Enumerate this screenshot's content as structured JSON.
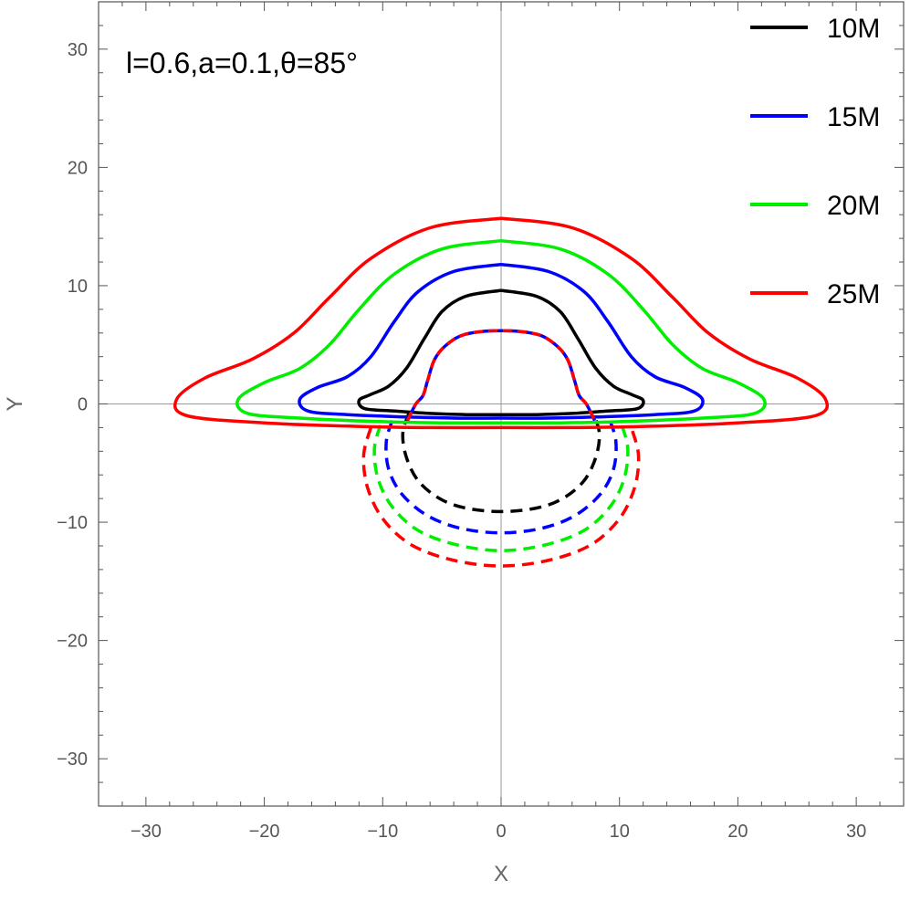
{
  "chart_data": {
    "type": "line",
    "title": "",
    "xlabel": "X",
    "ylabel": "Y",
    "xlim": [
      -34,
      34
    ],
    "ylim": [
      -34,
      34
    ],
    "xticks": [
      -30,
      -20,
      -10,
      0,
      10,
      20,
      30
    ],
    "yticks": [
      -30,
      -20,
      -10,
      0,
      10,
      20,
      30
    ],
    "xtick_labels": [
      "−30",
      "−20",
      "−10",
      "0",
      "10",
      "20",
      "30"
    ],
    "ytick_labels": [
      "−30",
      "−20",
      "−10",
      "0",
      "10",
      "20",
      "30"
    ],
    "grid": false,
    "legend_position": "top-right",
    "annotation": "l=0.6,a=0.1,θ=85°",
    "series": [
      {
        "name": "10M",
        "color": "#000000",
        "solid": [
          [
            0,
            9.6
          ],
          [
            3,
            9.1
          ],
          [
            5,
            7.8
          ],
          [
            6.5,
            5.5
          ],
          [
            8,
            3
          ],
          [
            9.5,
            1.5
          ],
          [
            11,
            0.8
          ],
          [
            12,
            0.3
          ],
          [
            11.5,
            -0.4
          ],
          [
            9,
            -0.6
          ],
          [
            6,
            -0.8
          ],
          [
            3,
            -0.9
          ],
          [
            0,
            -0.9
          ],
          [
            -3,
            -0.9
          ],
          [
            -6,
            -0.8
          ],
          [
            -9,
            -0.6
          ],
          [
            -11.5,
            -0.4
          ],
          [
            -12,
            0.3
          ],
          [
            -11,
            0.8
          ],
          [
            -9.5,
            1.5
          ],
          [
            -8,
            3
          ],
          [
            -6.5,
            5.5
          ],
          [
            -5,
            7.8
          ],
          [
            -3,
            9.1
          ],
          [
            0,
            9.6
          ]
        ],
        "dashed": [
          [
            -7.8,
            -0.8
          ],
          [
            -8.3,
            -2.5
          ],
          [
            -8,
            -4.5
          ],
          [
            -7,
            -6.5
          ],
          [
            -5.2,
            -8
          ],
          [
            -3,
            -8.8
          ],
          [
            0,
            -9.1
          ],
          [
            3,
            -8.8
          ],
          [
            5.2,
            -8
          ],
          [
            7,
            -6.5
          ],
          [
            8,
            -4.5
          ],
          [
            8.3,
            -2.5
          ],
          [
            7.8,
            -0.8
          ]
        ]
      },
      {
        "name": "15M",
        "color": "#0000ff",
        "solid": [
          [
            0,
            11.8
          ],
          [
            4,
            11.2
          ],
          [
            7,
            9.5
          ],
          [
            9,
            7
          ],
          [
            11,
            4
          ],
          [
            13,
            2.3
          ],
          [
            15.5,
            1.4
          ],
          [
            17,
            0.4
          ],
          [
            16.3,
            -0.6
          ],
          [
            13,
            -0.9
          ],
          [
            8,
            -1.1
          ],
          [
            4,
            -1.2
          ],
          [
            0,
            -1.2
          ],
          [
            -4,
            -1.2
          ],
          [
            -8,
            -1.1
          ],
          [
            -13,
            -0.9
          ],
          [
            -16.3,
            -0.6
          ],
          [
            -17,
            0.4
          ],
          [
            -15.5,
            1.4
          ],
          [
            -13,
            2.3
          ],
          [
            -11,
            4
          ],
          [
            -9,
            7
          ],
          [
            -7,
            9.5
          ],
          [
            -4,
            11.2
          ],
          [
            0,
            11.8
          ]
        ],
        "dashed": [
          [
            -9.2,
            -1.4
          ],
          [
            -9.7,
            -3.2
          ],
          [
            -9.5,
            -5.5
          ],
          [
            -8.4,
            -7.6
          ],
          [
            -6.3,
            -9.4
          ],
          [
            -3.5,
            -10.5
          ],
          [
            0,
            -10.9
          ],
          [
            3.5,
            -10.5
          ],
          [
            6.3,
            -9.4
          ],
          [
            8.4,
            -7.6
          ],
          [
            9.5,
            -5.5
          ],
          [
            9.7,
            -3.2
          ],
          [
            9.2,
            -1.4
          ]
        ]
      },
      {
        "name": "20M",
        "color": "#00ee00",
        "solid": [
          [
            0,
            13.8
          ],
          [
            5,
            13.1
          ],
          [
            9,
            11
          ],
          [
            12,
            8
          ],
          [
            14.5,
            5
          ],
          [
            17,
            3
          ],
          [
            20,
            1.8
          ],
          [
            22.2,
            0.4
          ],
          [
            21.4,
            -0.8
          ],
          [
            17,
            -1.2
          ],
          [
            10,
            -1.5
          ],
          [
            5,
            -1.6
          ],
          [
            0,
            -1.6
          ],
          [
            -5,
            -1.6
          ],
          [
            -10,
            -1.5
          ],
          [
            -17,
            -1.2
          ],
          [
            -21.4,
            -0.8
          ],
          [
            -22.2,
            0.4
          ],
          [
            -20,
            1.8
          ],
          [
            -17,
            3
          ],
          [
            -14.5,
            5
          ],
          [
            -12,
            8
          ],
          [
            -9,
            11
          ],
          [
            -5,
            13.1
          ],
          [
            0,
            13.8
          ]
        ],
        "dashed": [
          [
            -10.2,
            -1.8
          ],
          [
            -10.7,
            -3.8
          ],
          [
            -10.4,
            -6.3
          ],
          [
            -9.2,
            -8.7
          ],
          [
            -7,
            -10.7
          ],
          [
            -3.8,
            -11.9
          ],
          [
            0,
            -12.4
          ],
          [
            3.8,
            -11.9
          ],
          [
            7,
            -10.7
          ],
          [
            9.2,
            -8.7
          ],
          [
            10.4,
            -6.3
          ],
          [
            10.7,
            -3.8
          ],
          [
            10.2,
            -1.8
          ]
        ]
      },
      {
        "name": "25M",
        "color": "#ff0000",
        "solid": [
          [
            0,
            15.7
          ],
          [
            6,
            14.9
          ],
          [
            11,
            12.3
          ],
          [
            14.5,
            9
          ],
          [
            17.5,
            6
          ],
          [
            21,
            3.8
          ],
          [
            25,
            2.2
          ],
          [
            27.4,
            0.4
          ],
          [
            26.5,
            -1
          ],
          [
            20,
            -1.6
          ],
          [
            12,
            -1.9
          ],
          [
            6,
            -2
          ],
          [
            0,
            -2
          ],
          [
            -6,
            -2
          ],
          [
            -12,
            -1.9
          ],
          [
            -20,
            -1.6
          ],
          [
            -26.5,
            -1
          ],
          [
            -27.4,
            0.4
          ],
          [
            -25,
            2.2
          ],
          [
            -21,
            3.8
          ],
          [
            -17.5,
            6
          ],
          [
            -14.5,
            9
          ],
          [
            -11,
            12.3
          ],
          [
            -6,
            14.9
          ],
          [
            0,
            15.7
          ]
        ],
        "dashed": [
          [
            -11,
            -2
          ],
          [
            -11.6,
            -4.3
          ],
          [
            -11.3,
            -7
          ],
          [
            -10,
            -9.7
          ],
          [
            -7.6,
            -11.9
          ],
          [
            -4.1,
            -13.2
          ],
          [
            0,
            -13.7
          ],
          [
            4.1,
            -13.2
          ],
          [
            7.6,
            -11.9
          ],
          [
            10,
            -9.7
          ],
          [
            11.3,
            -7
          ],
          [
            11.6,
            -4.3
          ],
          [
            11,
            -2
          ]
        ]
      }
    ],
    "inner_shadow_curve": [
      [
        -7.9,
        -1.4
      ],
      [
        -7.2,
        0
      ],
      [
        -6.6,
        0.7
      ],
      [
        -6.2,
        2
      ],
      [
        -5.6,
        3.8
      ],
      [
        -4.6,
        5
      ],
      [
        -3,
        5.9
      ],
      [
        0,
        6.2
      ],
      [
        3,
        5.9
      ],
      [
        4.6,
        5
      ],
      [
        5.6,
        3.8
      ],
      [
        6.2,
        2
      ],
      [
        6.6,
        0.7
      ],
      [
        7.2,
        0
      ],
      [
        7.9,
        -1.4
      ]
    ]
  }
}
